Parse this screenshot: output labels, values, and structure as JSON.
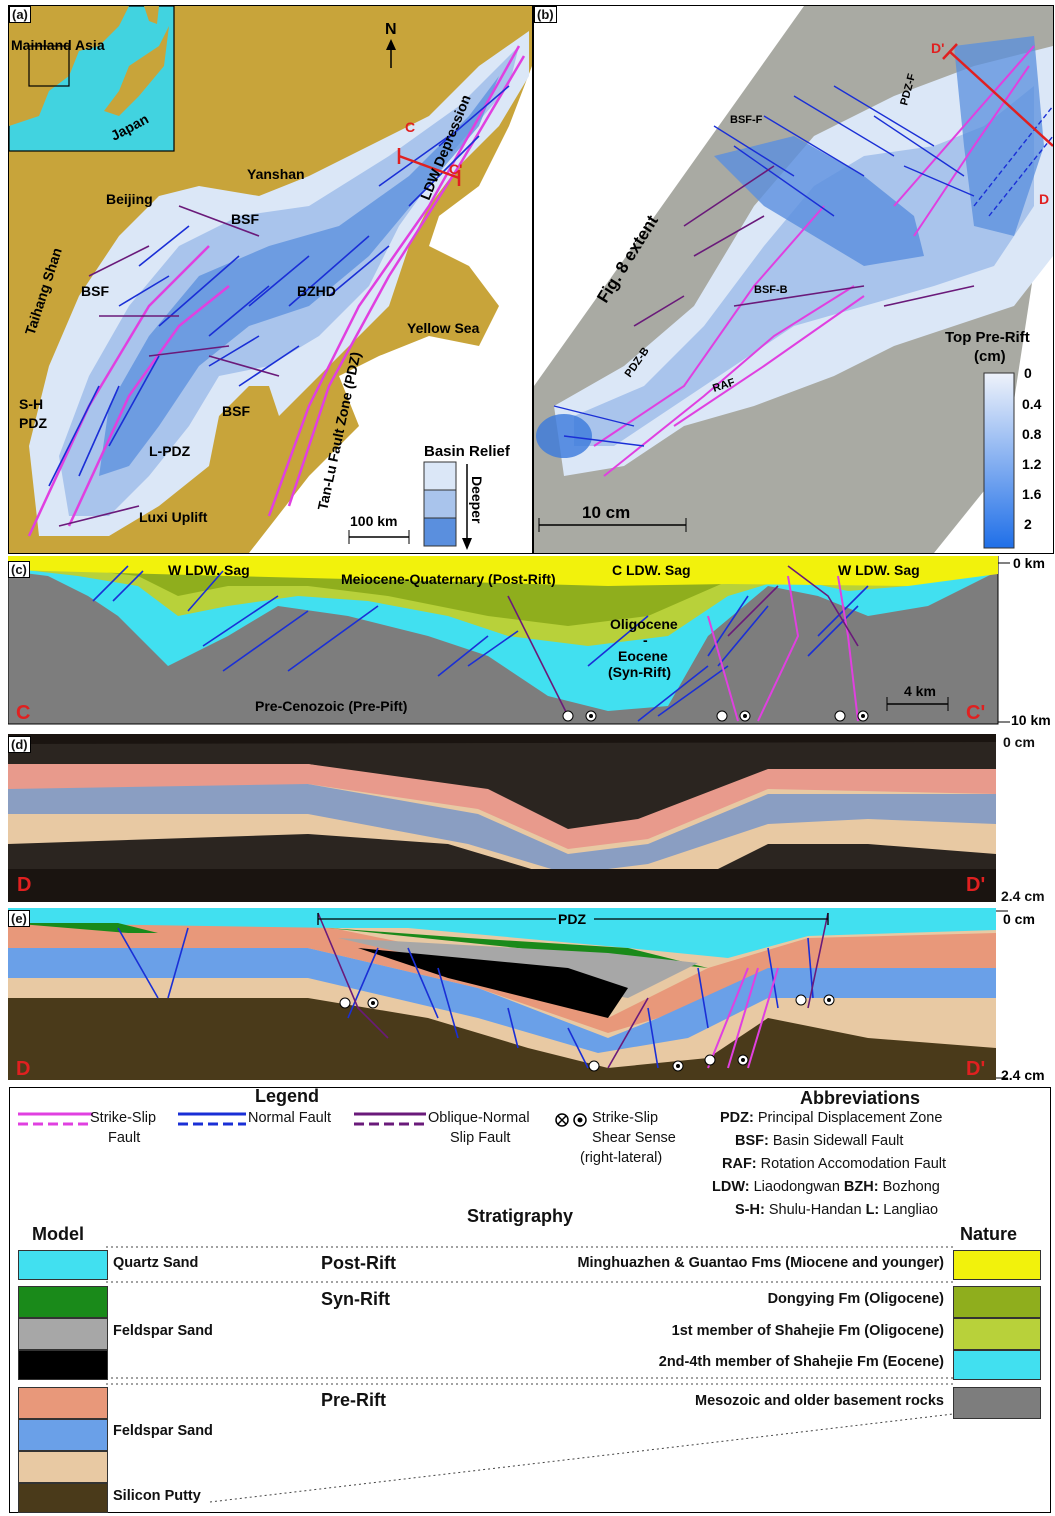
{
  "panel_a": {
    "label": "(a)",
    "inset_title": "Mainland Asia",
    "japan": "Japan",
    "north": "N",
    "places": [
      "Yanshan",
      "Beijing",
      "Taihang Shan",
      "BSF",
      "BSF",
      "BZHD",
      "BSF",
      "LDW Depression",
      "Yellow Sea",
      "Tan-Lu Fault Zone (PDZ)",
      "S-H\nPDZ",
      "L-PDZ",
      "Luxi Uplift"
    ],
    "section_c": "C",
    "section_c2": "C'",
    "relief_title": "Basin Relief",
    "relief_arrow": "Deeper",
    "scale": "100 km"
  },
  "panel_b": {
    "label": "(b)",
    "extent": "Fig. 8 extent",
    "faults": [
      "PDZ-F",
      "BSF-F",
      "BSF-B",
      "PDZ-B",
      "RAF"
    ],
    "section_d": "D'",
    "section_d2": "D",
    "scale": "10 cm",
    "colorbar_title": "Top Pre-Rift",
    "colorbar_unit": "(cm)",
    "colorbar_ticks": [
      "0",
      "0.4",
      "0.8",
      "1.2",
      "1.6",
      "2"
    ]
  },
  "panel_c": {
    "label": "(c)",
    "sags": [
      "W LDW. Sag",
      "C LDW. Sag",
      "W LDW. Sag"
    ],
    "units": [
      "Meiocene-Quaternary (Post-Rift)",
      "Oligocene",
      "-",
      "Eocene",
      "(Syn-Rift)",
      "Pre-Cenozoic (Pre-Pift)"
    ],
    "left": "C",
    "right": "C'",
    "scale": "4 km",
    "depth_top": "0 km",
    "depth_bottom": "10 km"
  },
  "panel_d": {
    "label": "(d)",
    "left": "D",
    "right": "D'",
    "depth_top": "0 cm",
    "depth_bottom": "2.4 cm"
  },
  "panel_e": {
    "label": "(e)",
    "pdz": "PDZ",
    "left": "D",
    "right": "D'",
    "depth_top": "0 cm",
    "depth_bottom": "2.4 cm"
  },
  "legend": {
    "title": "Legend",
    "strike_slip": "Strike-Slip",
    "strike_slip2": "Fault",
    "normal": "Normal Fault",
    "oblique": "Oblique-Normal",
    "oblique2": "Slip Fault",
    "shear1": "Strike-Slip",
    "shear2": "Shear Sense",
    "shear3": "(right-lateral)",
    "colors": {
      "strike_slip": "#e040e0",
      "normal": "#1a2fd6",
      "oblique": "#6a1a7a"
    }
  },
  "abbreviations": {
    "title": "Abbreviations",
    "rows": [
      [
        {
          "k": "PDZ:",
          "v": " Principal Displacement Zone"
        }
      ],
      [
        {
          "k": "BSF:",
          "v": " Basin Sidewall Fault"
        }
      ],
      [
        {
          "k": "RAF:",
          "v": " Rotation Accomodation Fault"
        }
      ],
      [
        {
          "k": "LDW:",
          "v": " Liaodongwan "
        },
        {
          "k": "BZH:",
          "v": " Bozhong"
        }
      ],
      [
        {
          "k": "S-H:",
          "v": " Shulu-Handan "
        },
        {
          "k": "L:",
          "v": " Langliao"
        }
      ]
    ]
  },
  "stratigraphy": {
    "title": "Stratigraphy",
    "model": "Model",
    "nature": "Nature",
    "post_rift": "Post-Rift",
    "syn_rift": "Syn-Rift",
    "pre_rift": "Pre-Rift",
    "quartz": "Quartz Sand",
    "feldspar_syn": "Feldspar Sand",
    "feldspar_pre": "Feldspar Sand",
    "putty": "Silicon Putty",
    "n1": "Minghuazhen & Guantao Fms (Miocene and younger)",
    "n2": "Dongying Fm (Oligocene)",
    "n3": "1st member of Shahejie Fm (Oligocene)",
    "n4": "2nd-4th  member of Shahejie Fm (Eocene)",
    "n5": "Mesozoic and older basement rocks"
  }
}
